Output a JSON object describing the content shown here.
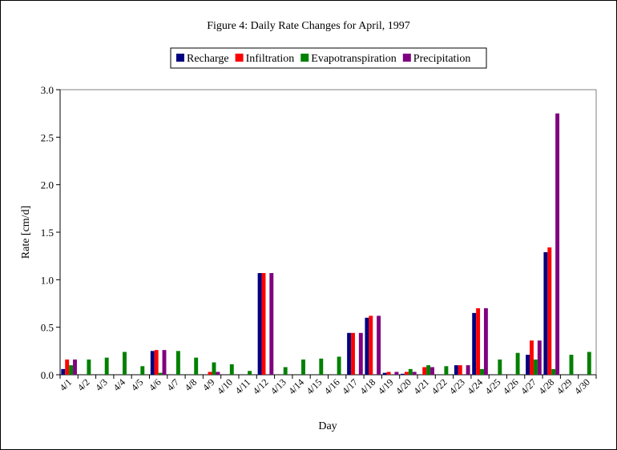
{
  "chart_data": {
    "type": "bar",
    "title": "Figure 4: Daily Rate Changes for April, 1997",
    "xlabel": "Day",
    "ylabel": "Rate [cm/d]",
    "ylim": [
      0,
      3.0
    ],
    "yticks": [
      "0.0",
      "0.5",
      "1.0",
      "1.5",
      "2.0",
      "2.5",
      "3.0"
    ],
    "grid": false,
    "legend_position": "top",
    "categories": [
      "4/1",
      "4/2",
      "4/3",
      "4/4",
      "4/5",
      "4/6",
      "4/7",
      "4/8",
      "4/9",
      "4/10",
      "4/11",
      "4/12",
      "4/13",
      "4/14",
      "4/15",
      "4/16",
      "4/17",
      "4/18",
      "4/19",
      "4/20",
      "4/21",
      "4/22",
      "4/23",
      "4/24",
      "4/25",
      "4/26",
      "4/27",
      "4/28",
      "4/29",
      "4/30"
    ],
    "series": [
      {
        "name": "Recharge",
        "color": "#000080",
        "values": [
          0.06,
          0,
          0,
          0,
          0,
          0.25,
          0,
          0,
          0,
          0,
          0,
          1.07,
          0,
          0,
          0,
          0,
          0.44,
          0.6,
          0.02,
          0.01,
          0,
          0,
          0.1,
          0.65,
          0,
          0,
          0.21,
          1.29,
          0,
          0
        ]
      },
      {
        "name": "Infiltration",
        "color": "#ff0000",
        "values": [
          0.16,
          0,
          0,
          0,
          0,
          0.26,
          0,
          0,
          0.03,
          0,
          0,
          1.07,
          0,
          0,
          0,
          0,
          0.44,
          0.62,
          0.03,
          0.03,
          0.08,
          0,
          0.1,
          0.7,
          0,
          0,
          0.36,
          1.34,
          0,
          0
        ]
      },
      {
        "name": "Evapotranspiration",
        "color": "#008000",
        "values": [
          0.1,
          0.16,
          0.18,
          0.24,
          0.09,
          0.02,
          0.25,
          0.18,
          0.13,
          0.11,
          0.04,
          0,
          0.08,
          0.16,
          0.17,
          0.19,
          0,
          0,
          0,
          0.06,
          0.1,
          0.09,
          0,
          0.06,
          0.16,
          0.23,
          0.16,
          0.06,
          0.21,
          0.24
        ]
      },
      {
        "name": "Precipitation",
        "color": "#800080",
        "values": [
          0.16,
          0,
          0,
          0,
          0,
          0.26,
          0,
          0,
          0.03,
          0,
          0,
          1.07,
          0,
          0,
          0,
          0,
          0.44,
          0.62,
          0.03,
          0.03,
          0.08,
          0,
          0.1,
          0.7,
          0,
          0,
          0.36,
          2.75,
          0,
          0
        ]
      }
    ]
  }
}
